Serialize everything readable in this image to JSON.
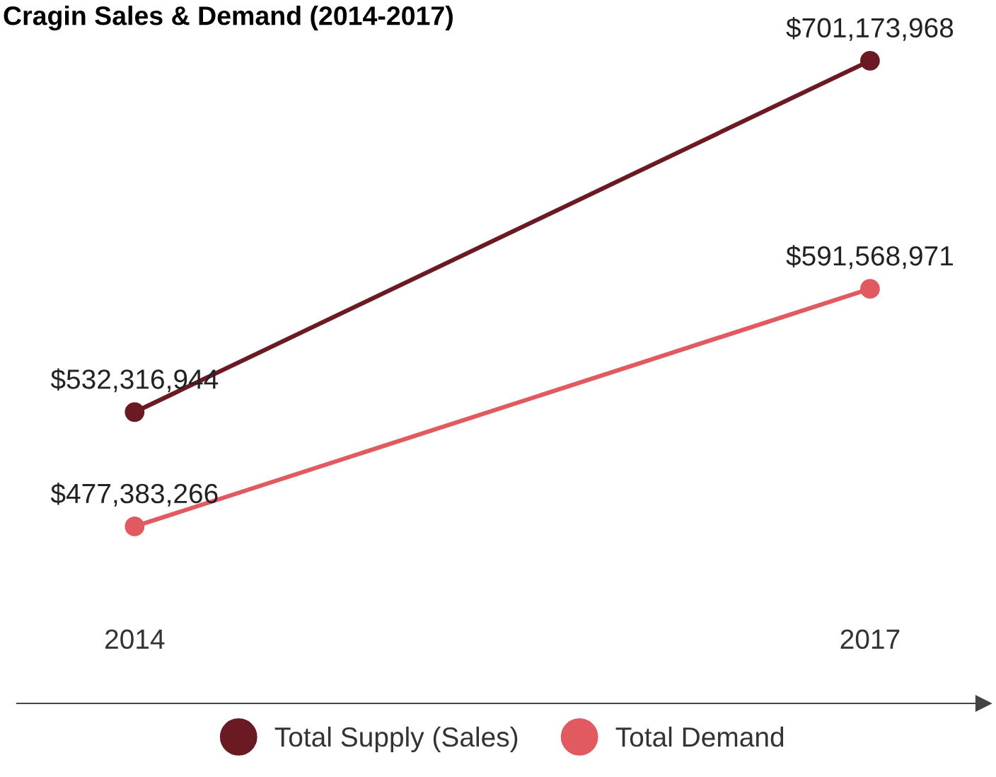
{
  "chart_data": {
    "type": "line",
    "title": "Cragin Sales & Demand (2014-2017)",
    "categories": [
      "2014",
      "2017"
    ],
    "series": [
      {
        "name": "Total Supply (Sales)",
        "color": "#6b1a24",
        "values": [
          532316944,
          701173968
        ],
        "value_labels": [
          "$532,316,944",
          "$701,173,968"
        ]
      },
      {
        "name": "Total Demand",
        "color": "#e05a60",
        "values": [
          477383266,
          591568971
        ],
        "value_labels": [
          "$477,383,266",
          "$591,568,971"
        ]
      }
    ],
    "marker": "circle",
    "line_style": "solid",
    "grid": false,
    "legend": "bottom"
  }
}
